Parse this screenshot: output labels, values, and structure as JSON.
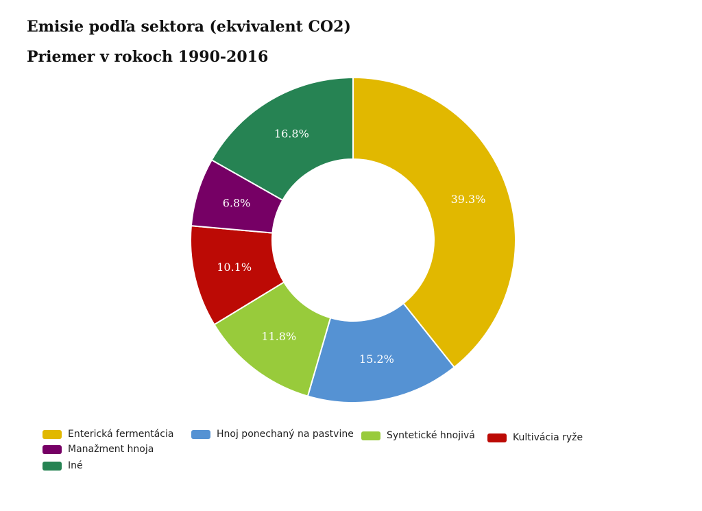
{
  "chart_data": {
    "type": "pie",
    "title": "Emisie podľa sektora (ekvivalent CO2)",
    "subtitle": "Priemer v rokoch 1990-2016",
    "donut": true,
    "legend_position": "bottom-left",
    "slices": [
      {
        "label": "Enterická fermentácia",
        "value": 39.3,
        "value_label": "39.3%",
        "color": "#E1B800"
      },
      {
        "label": "Hnoj ponechaný na pastvine",
        "value": 15.2,
        "value_label": "15.2%",
        "color": "#5592D3"
      },
      {
        "label": "Syntetické hnojivá",
        "value": 11.8,
        "value_label": "11.8%",
        "color": "#98CB3B"
      },
      {
        "label": "Kultivácia ryže",
        "value": 10.1,
        "value_label": "10.1%",
        "color": "#BC0A05"
      },
      {
        "label": "Manažment hnoja",
        "value": 6.8,
        "value_label": "6.8%",
        "color": "#760065"
      },
      {
        "label": "Iné",
        "value": 16.8,
        "value_label": "16.8%",
        "color": "#268353"
      }
    ]
  }
}
